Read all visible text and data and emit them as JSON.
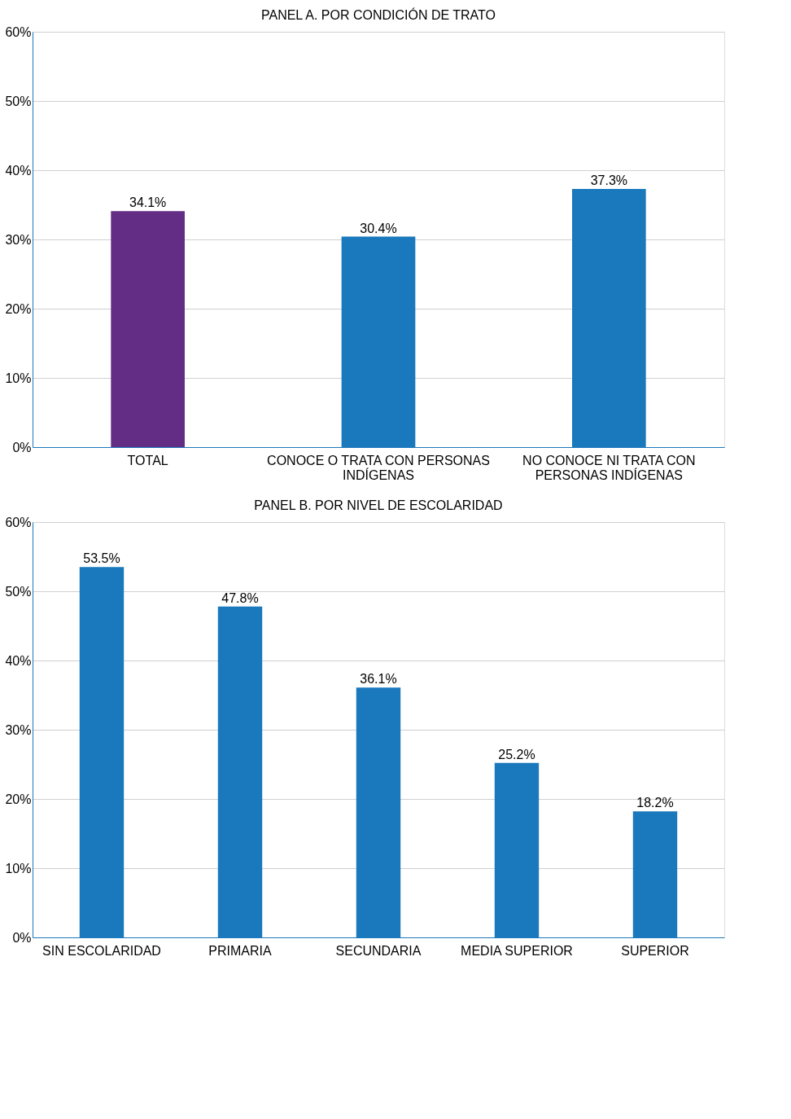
{
  "chart_data": [
    {
      "type": "bar",
      "title": "PANEL A. POR CONDICIÓN DE TRATO",
      "categories": [
        "TOTAL",
        "CONOCE O TRATA CON PERSONAS INDÍGENAS",
        "NO CONOCE NI TRATA CON PERSONAS INDÍGENAS"
      ],
      "values": [
        34.1,
        30.4,
        37.3
      ],
      "colors": [
        "#632d86",
        "#1a78bc",
        "#1a78bc"
      ],
      "value_labels": [
        "34.1%",
        "30.4%",
        "37.3%"
      ],
      "ylim": [
        0,
        60
      ],
      "yticks": [
        {
          "value": 0,
          "label": "0%"
        },
        {
          "value": 10,
          "label": "10%"
        },
        {
          "value": 20,
          "label": "20%"
        },
        {
          "value": 30,
          "label": "30%"
        },
        {
          "value": 40,
          "label": "40%"
        },
        {
          "value": 50,
          "label": "50%"
        },
        {
          "value": 60,
          "label": "60%"
        }
      ],
      "grid": "y"
    },
    {
      "type": "bar",
      "title": "PANEL B. POR NIVEL DE ESCOLARIDAD",
      "categories": [
        "SIN ESCOLARIDAD",
        "PRIMARIA",
        "SECUNDARIA",
        "MEDIA SUPERIOR",
        "SUPERIOR"
      ],
      "values": [
        53.5,
        47.8,
        36.1,
        25.2,
        18.2
      ],
      "colors": [
        "#1a78bc",
        "#1a78bc",
        "#1a78bc",
        "#1a78bc",
        "#1a78bc"
      ],
      "value_labels": [
        "53.5%",
        "47.8%",
        "36.1%",
        "25.2%",
        "18.2%"
      ],
      "ylim": [
        0,
        60
      ],
      "yticks": [
        {
          "value": 0,
          "label": "0%"
        },
        {
          "value": 10,
          "label": "10%"
        },
        {
          "value": 20,
          "label": "20%"
        },
        {
          "value": 30,
          "label": "30%"
        },
        {
          "value": 40,
          "label": "40%"
        },
        {
          "value": 50,
          "label": "50%"
        },
        {
          "value": 60,
          "label": "60%"
        }
      ],
      "grid": "y"
    }
  ]
}
